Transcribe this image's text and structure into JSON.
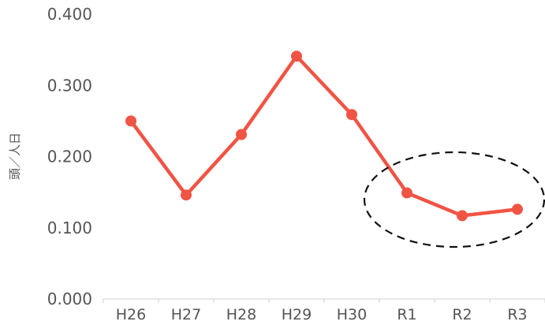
{
  "chart_data": {
    "type": "line",
    "categories": [
      "H26",
      "H27",
      "H28",
      "H29",
      "H30",
      "R1",
      "R2",
      "R3"
    ],
    "series": [
      {
        "values": [
          0.25,
          0.146,
          0.231,
          0.341,
          0.259,
          0.149,
          0.117,
          0.126
        ]
      }
    ],
    "ylabel": "頭／人日",
    "xlabel": "",
    "ylim": [
      0,
      0.4
    ],
    "yticks": [
      "0.000",
      "0.100",
      "0.200",
      "0.300",
      "0.400"
    ],
    "grid": false,
    "line_color": "#f05444",
    "annotation": {
      "shape": "dashed-ellipse",
      "highlights": [
        "R1",
        "R2",
        "R3"
      ]
    }
  }
}
